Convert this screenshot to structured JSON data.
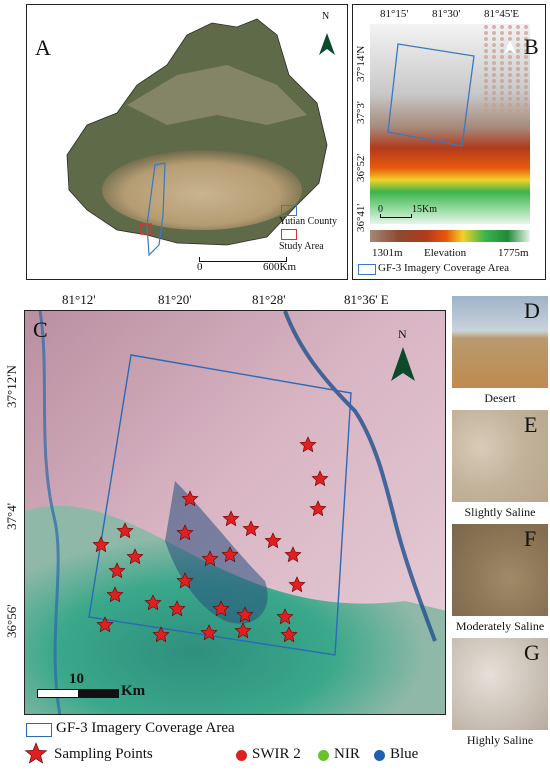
{
  "panel_a": {
    "label": "A",
    "north": "N",
    "scale_start": "0",
    "scale_end": "600Km",
    "legend": [
      {
        "text": "Yutian County",
        "color": "#3a78c2"
      },
      {
        "text": "Study Area",
        "color": "#e03030"
      }
    ]
  },
  "panel_b": {
    "label": "B",
    "top_ticks": [
      "81°15'",
      "81°30'",
      "81°45'E"
    ],
    "left_ticks": [
      "37°14'N",
      "37°3'",
      "36°52'",
      "36°41'"
    ],
    "scale_start": "0",
    "scale_end": "15Km",
    "elevation_min": "1301m",
    "elevation_label": "Elevation",
    "elevation_max": "1775m",
    "coverage_legend": "GF-3 Imagery  Coverage Area"
  },
  "panel_c": {
    "label": "C",
    "north": "N",
    "top_ticks": [
      "81°12'",
      "81°20'",
      "81°28'",
      "81°36' E"
    ],
    "left_ticks": [
      "37°12'N",
      "37°4'",
      "36°56'"
    ],
    "scale_value": "10",
    "scale_unit": "Km"
  },
  "photos": [
    {
      "label": "D",
      "caption": "Desert"
    },
    {
      "label": "E",
      "caption": "Slightly Saline"
    },
    {
      "label": "F",
      "caption": "Moderately Saline"
    },
    {
      "label": "G",
      "caption": "Highly Saline"
    }
  ],
  "bottom_legend": {
    "coverage": "GF-3 Imagery Coverage Area",
    "sampling": "Sampling Points",
    "bands": [
      {
        "text": "SWIR 2",
        "color": "#e02020"
      },
      {
        "text": "NIR",
        "color": "#6cc22a"
      },
      {
        "text": "Blue",
        "color": "#1f5fb0"
      }
    ]
  }
}
